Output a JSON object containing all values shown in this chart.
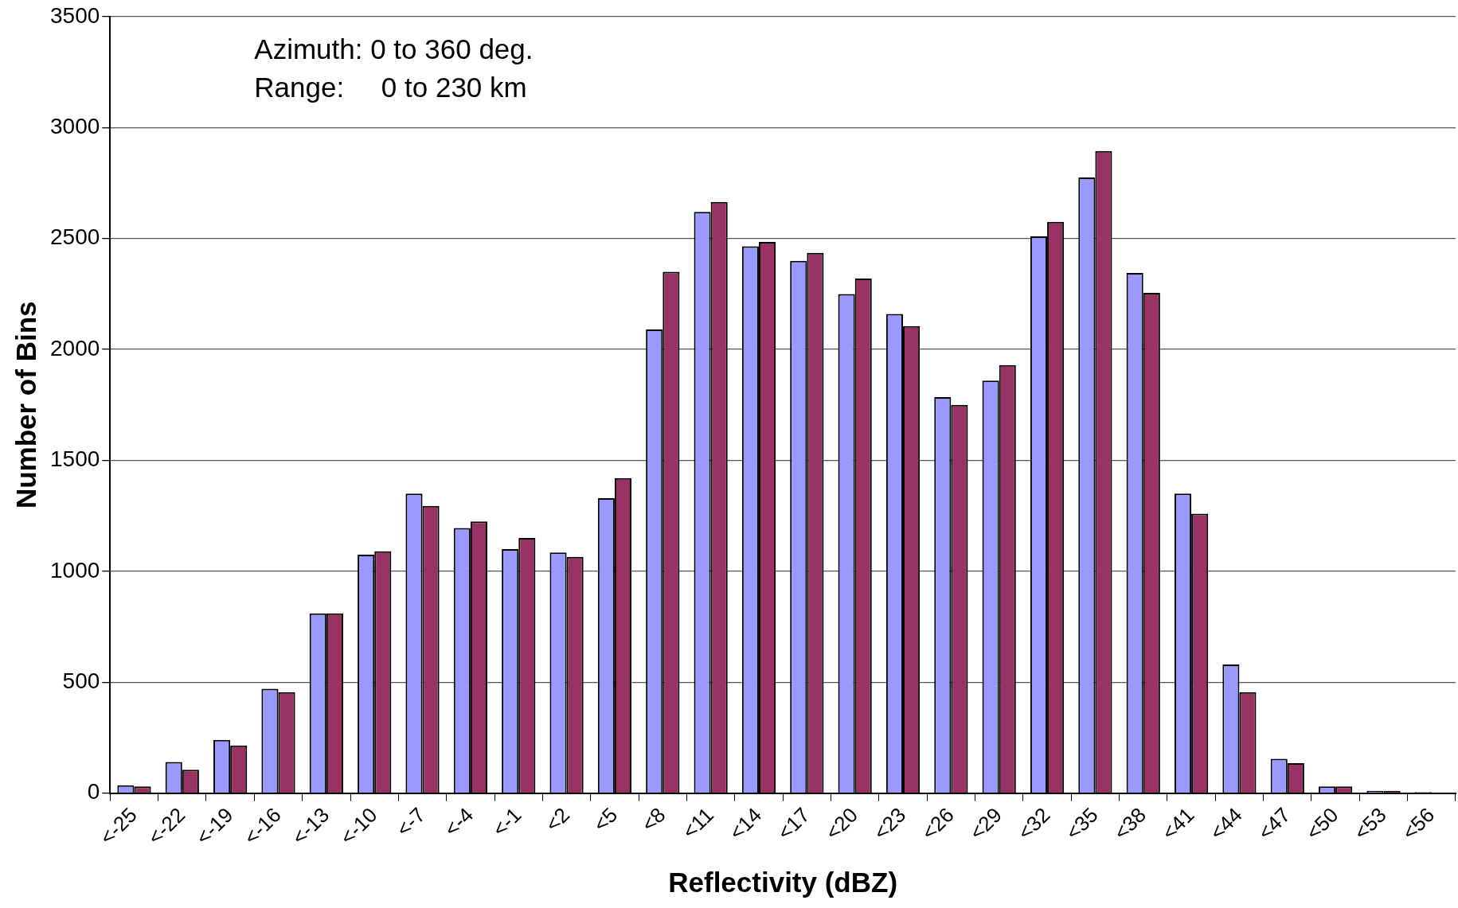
{
  "chart_data": {
    "type": "bar",
    "xlabel": "Reflectivity (dBZ)",
    "ylabel": "Number of Bins",
    "categories": [
      "<-25",
      "<-22",
      "<-19",
      "<-16",
      "<-13",
      "<-10",
      "<-7",
      "<-4",
      "<-1",
      "<2",
      "<5",
      "<8",
      "<11",
      "<14",
      "<17",
      "<20",
      "<23",
      "<26",
      "<29",
      "<32",
      "<35",
      "<38",
      "<41",
      "<44",
      "<47",
      "<50",
      "<53",
      "<56"
    ],
    "series": [
      {
        "color": "#9999ff",
        "values": [
          35,
          140,
          240,
          470,
          810,
          1075,
          1350,
          1195,
          1100,
          1085,
          1330,
          2090,
          2620,
          2465,
          2400,
          2250,
          2160,
          1785,
          1860,
          2510,
          2775,
          2345,
          1350,
          580,
          155,
          30,
          10,
          5
        ]
      },
      {
        "color": "#993366",
        "values": [
          30,
          105,
          215,
          455,
          810,
          1090,
          1295,
          1225,
          1150,
          1065,
          1420,
          2350,
          2665,
          2485,
          2435,
          2320,
          2105,
          1750,
          1930,
          2575,
          2895,
          2255,
          1260,
          455,
          135,
          30,
          10,
          null
        ]
      }
    ],
    "ylim": [
      0,
      3500
    ],
    "yticks": [
      0,
      500,
      1000,
      1500,
      2000,
      2500,
      3000,
      3500
    ],
    "grid": "y",
    "legend": false,
    "annotations": [
      "Azimuth: 0 to 360 deg.",
      "Range:   0 to 230 km"
    ]
  }
}
